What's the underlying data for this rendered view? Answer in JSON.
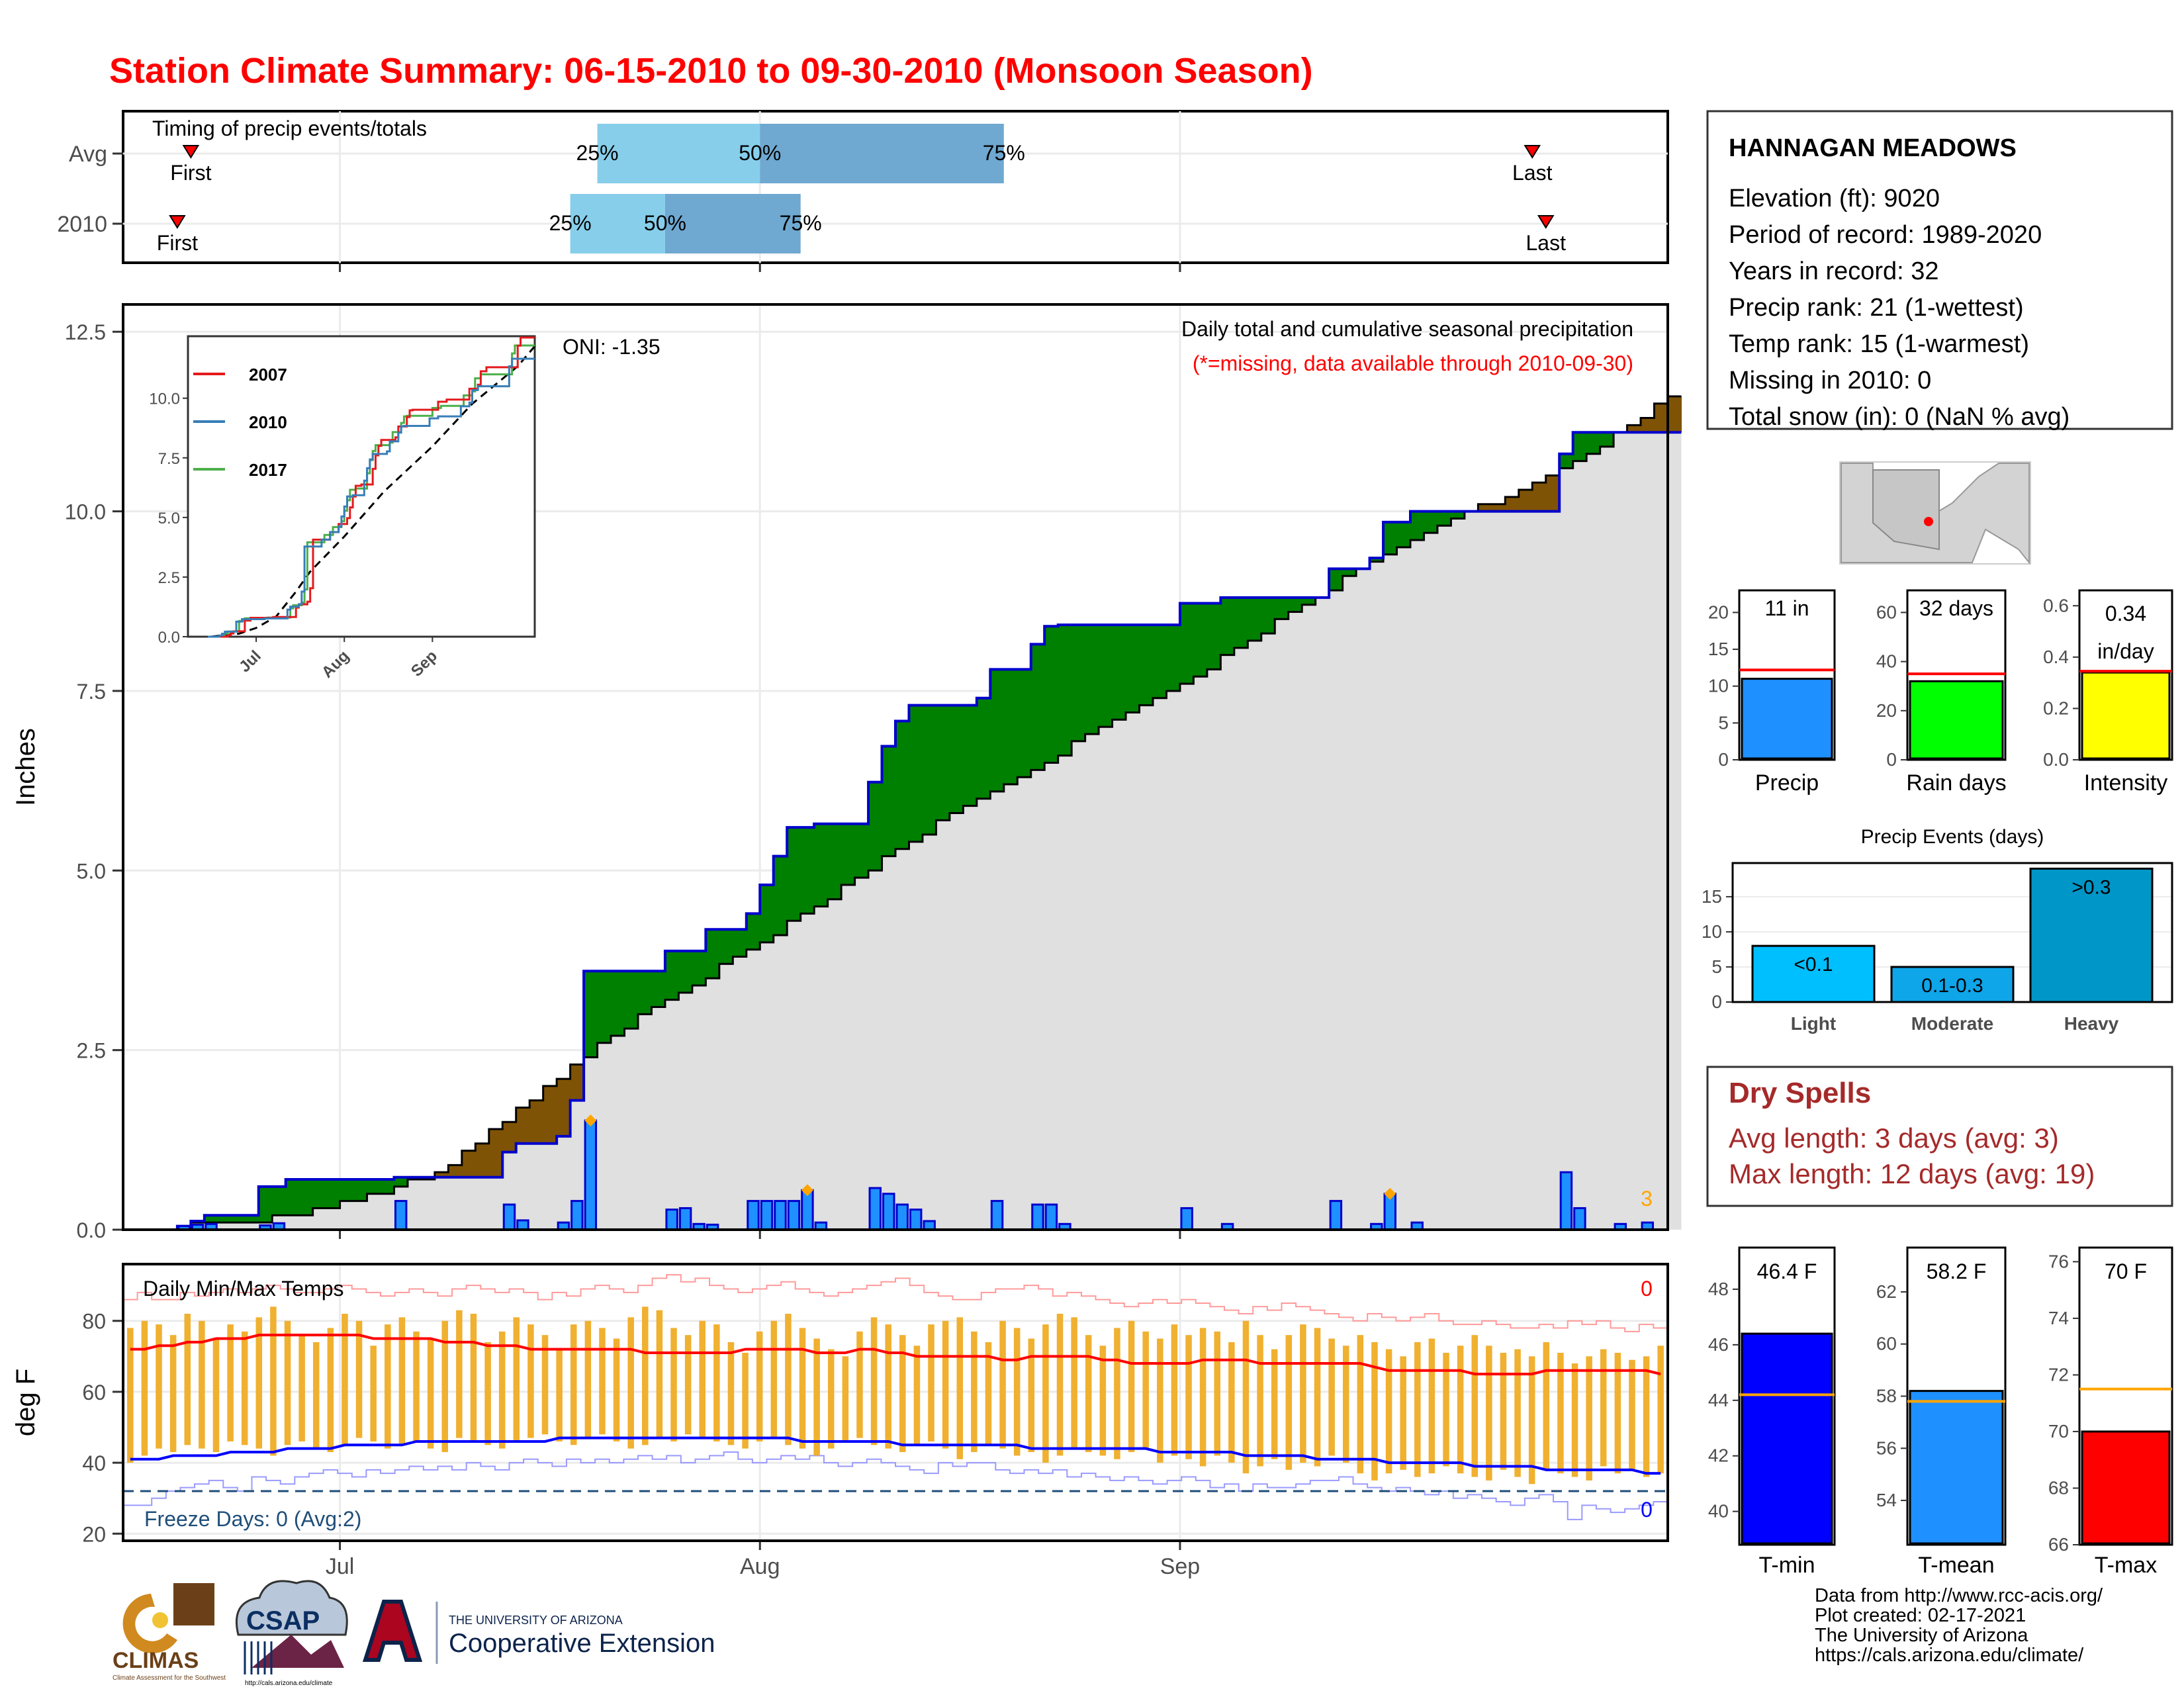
{
  "title": "Station Climate Summary: 06-15-2010 to 09-30-2010 (Monsoon Season)",
  "timing_panel": {
    "label": "Timing of precip events/totals",
    "rows": [
      {
        "name": "Avg",
        "first_label": "First",
        "last_label": "Last",
        "first": "06-20",
        "p25": "07-20",
        "p50": "08-01",
        "p75": "08-19",
        "last": "09-27"
      },
      {
        "name": "2010",
        "first_label": "First",
        "last_label": "Last",
        "first": "06-19",
        "p25": "07-18",
        "p50": "07-25",
        "p75": "08-04",
        "last": "09-28"
      }
    ],
    "pct_labels": [
      "25%",
      "50%",
      "75%"
    ]
  },
  "precip_panel": {
    "ylabel": "Inches",
    "yticks": [
      "0.0",
      "2.5",
      "5.0",
      "7.5",
      "10.0",
      "12.5"
    ],
    "ylim": [
      0,
      12.5
    ],
    "oni_text": "ONI: -1.35",
    "title_text": "Daily total and cumulative seasonal precipitation",
    "missing_text": "(*=missing, data available through 2010-09-30)",
    "corner_count": "3",
    "inset": {
      "yticks": [
        "0.0",
        "2.5",
        "5.0",
        "7.5",
        "10.0"
      ],
      "xticks": [
        "Jul",
        "Aug",
        "Sep"
      ],
      "legend": [
        {
          "name": "2007",
          "color": "#e41a1c"
        },
        {
          "name": "2010",
          "color": "#377eb8"
        },
        {
          "name": "2017",
          "color": "#4daf4a"
        }
      ]
    }
  },
  "temp_panel": {
    "ylabel": "deg F",
    "label": "Daily Min/Max Temps",
    "yticks": [
      "20",
      "40",
      "60",
      "80"
    ],
    "ylim": [
      18,
      96
    ],
    "freeze_text": "Freeze Days: 0 (Avg:2)",
    "hot_count": "0",
    "cold_count": "0",
    "xticks": [
      "Jul",
      "Aug",
      "Sep"
    ]
  },
  "station": {
    "name": "HANNAGAN MEADOWS",
    "lines": [
      "Elevation (ft): 9020",
      "Period of record: 1989-2020",
      "Years in record: 32",
      "Precip rank: 21 (1-wettest)",
      "Temp rank: 15 (1-warmest)",
      "Missing in 2010: 0",
      "Total snow (in): 0 (NaN % avg)"
    ]
  },
  "summary_bars": [
    {
      "label": "Precip",
      "value_text": "11 in",
      "value": 11.0,
      "avg": 12.2,
      "ylim": [
        0,
        23
      ],
      "yticks": [
        "0",
        "5",
        "10",
        "15",
        "20"
      ],
      "ytickvals": [
        0,
        5,
        10,
        15,
        20
      ],
      "color": "#1e90ff"
    },
    {
      "label": "Rain days",
      "value_text": "32 days",
      "value": 32,
      "avg": 35,
      "ylim": [
        0,
        69
      ],
      "yticks": [
        "0",
        "20",
        "40",
        "60"
      ],
      "ytickvals": [
        0,
        20,
        40,
        60
      ],
      "color": "#00ff00"
    },
    {
      "label": "Intensity",
      "value_text": "0.34",
      "value_text2": "in/day",
      "value": 0.34,
      "avg": 0.345,
      "ylim": [
        0,
        0.66
      ],
      "yticks": [
        "0.0",
        "0.2",
        "0.4",
        "0.6"
      ],
      "ytickvals": [
        0,
        0.2,
        0.4,
        0.6
      ],
      "color": "#ffff00"
    }
  ],
  "events": {
    "title": "Precip Events (days)",
    "yticks": [
      "0",
      "5",
      "10",
      "15"
    ],
    "ylim": [
      0,
      19.8
    ],
    "bars": [
      {
        "label": "Light",
        "value": 8,
        "text": "<0.1",
        "color": "#00bfff"
      },
      {
        "label": "Moderate",
        "value": 5,
        "text": "0.1-0.3",
        "color": "#0ea5e9"
      },
      {
        "label": "Heavy",
        "value": 19,
        "text": ">0.3",
        "color": "#0096c7"
      }
    ]
  },
  "dry_spells": {
    "title": "Dry Spells",
    "lines": [
      "Avg length: 3 days (avg: 3)",
      "Max length: 12 days (avg: 19)"
    ]
  },
  "temp_bars": [
    {
      "label": "T-min",
      "value_text": "46.4 F",
      "value": 46.4,
      "avg": 44.2,
      "ylim": [
        38.8,
        49.5
      ],
      "yticks": [
        "40",
        "42",
        "44",
        "46",
        "48"
      ],
      "ytickvals": [
        40,
        42,
        44,
        46,
        48
      ],
      "color": "#0000ff"
    },
    {
      "label": "T-mean",
      "value_text": "58.2 F",
      "value": 58.2,
      "avg": 57.8,
      "ylim": [
        52.3,
        63.7
      ],
      "yticks": [
        "54",
        "56",
        "58",
        "60",
        "62"
      ],
      "ytickvals": [
        54,
        56,
        58,
        60,
        62
      ],
      "color": "#1e90ff"
    },
    {
      "label": "T-max",
      "value_text": "70 F",
      "value": 70,
      "avg": 71.5,
      "ylim": [
        66,
        76.5
      ],
      "yticks": [
        "66",
        "68",
        "70",
        "72",
        "74",
        "76"
      ],
      "ytickvals": [
        66,
        68,
        70,
        72,
        74,
        76
      ],
      "color": "#ff0000"
    }
  ],
  "credits": [
    "Data from http://www.rcc-acis.org/",
    "Plot created: 02-17-2021",
    "The University of Arizona",
    "https://cals.arizona.edu/climate/"
  ],
  "logos": {
    "climas": "CLIMAS",
    "climas_sub": "Climate Assessment for the Southwest",
    "csap": "CSAP",
    "csap_url": "http://cals.arizona.edu/climate",
    "ua_line1": "THE UNIVERSITY OF ARIZONA",
    "ua_line2": "Cooperative Extension"
  },
  "chart_data": {
    "type": "area",
    "x_start": "2010-06-15",
    "x_end": "2010-09-30",
    "daily_precip": [
      {
        "date": "06-19",
        "value": 0.05
      },
      {
        "date": "06-20",
        "value": 0.07
      },
      {
        "date": "06-21",
        "value": 0.08
      },
      {
        "date": "06-25",
        "value": 0.06
      },
      {
        "date": "06-26",
        "value": 0.09
      },
      {
        "date": "07-05",
        "value": 0.4
      },
      {
        "date": "07-13",
        "value": 0.35
      },
      {
        "date": "07-14",
        "value": 0.13
      },
      {
        "date": "07-17",
        "value": 0.1
      },
      {
        "date": "07-18",
        "value": 0.4
      },
      {
        "date": "07-19",
        "value": 1.52
      },
      {
        "date": "07-25",
        "value": 0.28
      },
      {
        "date": "07-26",
        "value": 0.3
      },
      {
        "date": "07-27",
        "value": 0.08
      },
      {
        "date": "07-28",
        "value": 0.07
      },
      {
        "date": "07-31",
        "value": 0.4
      },
      {
        "date": "08-01",
        "value": 0.4
      },
      {
        "date": "08-02",
        "value": 0.4
      },
      {
        "date": "08-03",
        "value": 0.4
      },
      {
        "date": "08-04",
        "value": 0.55
      },
      {
        "date": "08-05",
        "value": 0.1
      },
      {
        "date": "08-09",
        "value": 0.58
      },
      {
        "date": "08-10",
        "value": 0.5
      },
      {
        "date": "08-11",
        "value": 0.35
      },
      {
        "date": "08-12",
        "value": 0.28
      },
      {
        "date": "08-13",
        "value": 0.12
      },
      {
        "date": "08-18",
        "value": 0.4
      },
      {
        "date": "08-21",
        "value": 0.35
      },
      {
        "date": "08-22",
        "value": 0.35
      },
      {
        "date": "08-23",
        "value": 0.08
      },
      {
        "date": "09-01",
        "value": 0.3
      },
      {
        "date": "09-04",
        "value": 0.08
      },
      {
        "date": "09-12",
        "value": 0.4
      },
      {
        "date": "09-15",
        "value": 0.08
      },
      {
        "date": "09-16",
        "value": 0.5
      },
      {
        "date": "09-18",
        "value": 0.1
      },
      {
        "date": "09-29",
        "value": 0.8
      },
      {
        "date": "09-30",
        "value": 0.3
      },
      {
        "date": "10-03",
        "value": 0.08
      },
      {
        "date": "10-05",
        "value": 0.1
      }
    ],
    "cum_2010": [
      {
        "date": "06-15",
        "value": 0
      },
      {
        "date": "06-19",
        "value": 0.05
      },
      {
        "date": "06-20",
        "value": 0.12
      },
      {
        "date": "06-21",
        "value": 0.2
      },
      {
        "date": "06-25",
        "value": 0.6
      },
      {
        "date": "06-27",
        "value": 0.7
      },
      {
        "date": "07-05",
        "value": 0.73
      },
      {
        "date": "07-13",
        "value": 1.08
      },
      {
        "date": "07-14",
        "value": 1.2
      },
      {
        "date": "07-17",
        "value": 1.3
      },
      {
        "date": "07-18",
        "value": 1.8
      },
      {
        "date": "07-19",
        "value": 3.6
      },
      {
        "date": "07-25",
        "value": 3.88
      },
      {
        "date": "07-28",
        "value": 4.18
      },
      {
        "date": "07-31",
        "value": 4.4
      },
      {
        "date": "08-01",
        "value": 4.8
      },
      {
        "date": "08-02",
        "value": 5.2
      },
      {
        "date": "08-03",
        "value": 5.6
      },
      {
        "date": "08-05",
        "value": 5.65
      },
      {
        "date": "08-09",
        "value": 6.23
      },
      {
        "date": "08-10",
        "value": 6.73
      },
      {
        "date": "08-11",
        "value": 7.08
      },
      {
        "date": "08-12",
        "value": 7.3
      },
      {
        "date": "08-17",
        "value": 7.4
      },
      {
        "date": "08-18",
        "value": 7.8
      },
      {
        "date": "08-21",
        "value": 8.15
      },
      {
        "date": "08-22",
        "value": 8.4
      },
      {
        "date": "08-23",
        "value": 8.42
      },
      {
        "date": "09-01",
        "value": 8.72
      },
      {
        "date": "09-04",
        "value": 8.8
      },
      {
        "date": "09-12",
        "value": 9.2
      },
      {
        "date": "09-15",
        "value": 9.35
      },
      {
        "date": "09-16",
        "value": 9.85
      },
      {
        "date": "09-18",
        "value": 10.0
      },
      {
        "date": "09-29",
        "value": 10.8
      },
      {
        "date": "09-30",
        "value": 11.1
      },
      {
        "date": "10-05",
        "value": 11.1
      }
    ],
    "cum_avg": [
      {
        "date": "06-15",
        "value": 0
      },
      {
        "date": "06-25",
        "value": 0.12
      },
      {
        "date": "07-01",
        "value": 0.35
      },
      {
        "date": "07-08",
        "value": 0.8
      },
      {
        "date": "07-15",
        "value": 1.8
      },
      {
        "date": "07-20",
        "value": 2.6
      },
      {
        "date": "08-01",
        "value": 4.0
      },
      {
        "date": "08-15",
        "value": 5.8
      },
      {
        "date": "09-01",
        "value": 7.6
      },
      {
        "date": "09-15",
        "value": 9.3
      },
      {
        "date": "10-01",
        "value": 10.8
      },
      {
        "date": "10-07",
        "value": 11.6
      }
    ],
    "temp_max": [
      78,
      80,
      79,
      76,
      82,
      80,
      75,
      79,
      77,
      81,
      84,
      80,
      76,
      74,
      78,
      82,
      80,
      73,
      79,
      81,
      77,
      75,
      80,
      83,
      82,
      74,
      77,
      81,
      79,
      76,
      72,
      79,
      80,
      78,
      75,
      81,
      84,
      83,
      78,
      76,
      80,
      79,
      74,
      71,
      77,
      80,
      82,
      78,
      75,
      72,
      70,
      77,
      81,
      79,
      76,
      73,
      79,
      80,
      81,
      77,
      74,
      80,
      78,
      75,
      79,
      82,
      81,
      76,
      73,
      78,
      80,
      77,
      75,
      79,
      76,
      78,
      77,
      74,
      80,
      76,
      72,
      76,
      79,
      78,
      75,
      73,
      76,
      74,
      72,
      70,
      74,
      75,
      71,
      73,
      76,
      73,
      71,
      72,
      70,
      74,
      71,
      68,
      70,
      72,
      71,
      69,
      70,
      73
    ],
    "temp_min": [
      40,
      42,
      44,
      43,
      45,
      44,
      43,
      46,
      45,
      44,
      42,
      45,
      46,
      44,
      43,
      45,
      47,
      46,
      44,
      45,
      46,
      44,
      43,
      47,
      46,
      45,
      44,
      46,
      47,
      48,
      46,
      45,
      47,
      48,
      46,
      44,
      45,
      47,
      46,
      48,
      47,
      46,
      45,
      44,
      46,
      47,
      45,
      44,
      42,
      44,
      46,
      47,
      45,
      44,
      43,
      45,
      46,
      44,
      41,
      43,
      45,
      44,
      42,
      43,
      40,
      42,
      44,
      43,
      42,
      41,
      43,
      44,
      40,
      42,
      41,
      39,
      42,
      40,
      37,
      39,
      41,
      38,
      40,
      39,
      42,
      40,
      37,
      35,
      37,
      38,
      36,
      37,
      39,
      37,
      36,
      35,
      38,
      36,
      34,
      38,
      37,
      36,
      35,
      39,
      37,
      38,
      36,
      37
    ],
    "temp_max_avg": [
      72,
      72,
      73,
      73,
      74,
      74,
      75,
      75,
      75,
      76,
      76,
      76,
      76,
      76,
      76,
      76,
      76,
      75,
      75,
      75,
      75,
      75,
      74,
      74,
      74,
      73,
      73,
      73,
      72,
      72,
      72,
      72,
      72,
      72,
      72,
      72,
      71,
      71,
      71,
      71,
      71,
      71,
      71,
      72,
      72,
      72,
      72,
      72,
      71,
      71,
      71,
      72,
      72,
      71,
      71,
      70,
      70,
      70,
      70,
      70,
      70,
      69,
      69,
      70,
      70,
      70,
      70,
      70,
      69,
      69,
      68,
      68,
      68,
      68,
      68,
      69,
      69,
      69,
      69,
      68,
      68,
      68,
      68,
      68,
      68,
      68,
      68,
      67,
      66,
      66,
      66,
      66,
      66,
      66,
      65,
      65,
      65,
      65,
      65,
      66,
      66,
      66,
      66,
      66,
      66,
      66,
      66,
      65
    ],
    "temp_min_avg": [
      41,
      41,
      41,
      42,
      42,
      42,
      42,
      43,
      43,
      43,
      43,
      44,
      44,
      44,
      44,
      45,
      45,
      45,
      45,
      45,
      46,
      46,
      46,
      46,
      46,
      46,
      46,
      46,
      46,
      46,
      47,
      47,
      47,
      47,
      47,
      47,
      47,
      47,
      47,
      47,
      47,
      47,
      47,
      47,
      47,
      47,
      47,
      46,
      46,
      46,
      46,
      46,
      46,
      46,
      45,
      45,
      45,
      45,
      45,
      45,
      45,
      45,
      45,
      44,
      44,
      44,
      44,
      44,
      44,
      44,
      44,
      44,
      43,
      43,
      43,
      43,
      43,
      43,
      42,
      42,
      42,
      42,
      42,
      41,
      41,
      41,
      41,
      41,
      40,
      40,
      40,
      40,
      40,
      40,
      39,
      39,
      39,
      39,
      39,
      38,
      38,
      38,
      38,
      38,
      38,
      38,
      37,
      37
    ],
    "temp_max_record": [
      86,
      88,
      86,
      86,
      88,
      87,
      88,
      89,
      88,
      89,
      90,
      89,
      88,
      88,
      89,
      90,
      89,
      88,
      87,
      88,
      89,
      88,
      87,
      89,
      90,
      89,
      88,
      89,
      88,
      86,
      88,
      87,
      89,
      90,
      89,
      88,
      90,
      92,
      93,
      91,
      92,
      90,
      89,
      88,
      89,
      90,
      91,
      89,
      88,
      87,
      88,
      89,
      90,
      91,
      92,
      90,
      88,
      87,
      86,
      86,
      88,
      89,
      89,
      90,
      89,
      87,
      88,
      87,
      86,
      85,
      84,
      85,
      86,
      85,
      86,
      85,
      84,
      83,
      82,
      84,
      83,
      85,
      84,
      83,
      82,
      81,
      80,
      82,
      81,
      80,
      81,
      82,
      80,
      79,
      79,
      80,
      79,
      78,
      78,
      79,
      78,
      80,
      79,
      80,
      78,
      77,
      79,
      78
    ],
    "temp_min_record": [
      28,
      28,
      30,
      32,
      33,
      34,
      35,
      33,
      32,
      36,
      35,
      34,
      36,
      37,
      38,
      37,
      36,
      38,
      37,
      38,
      39,
      38,
      39,
      38,
      40,
      39,
      38,
      40,
      41,
      40,
      39,
      41,
      40,
      41,
      40,
      41,
      42,
      41,
      42,
      40,
      41,
      42,
      43,
      41,
      40,
      41,
      42,
      41,
      42,
      40,
      39,
      40,
      41,
      40,
      39,
      38,
      37,
      40,
      39,
      40,
      40,
      38,
      37,
      38,
      37,
      38,
      36,
      37,
      36,
      35,
      36,
      35,
      34,
      35,
      36,
      35,
      33,
      34,
      32,
      34,
      33,
      33,
      34,
      35,
      35,
      36,
      34,
      33,
      32,
      33,
      32,
      31,
      32,
      30,
      31,
      30,
      29,
      28,
      30,
      31,
      29,
      24,
      28,
      27,
      26,
      27,
      28,
      29
    ],
    "freeze_line": 32
  }
}
